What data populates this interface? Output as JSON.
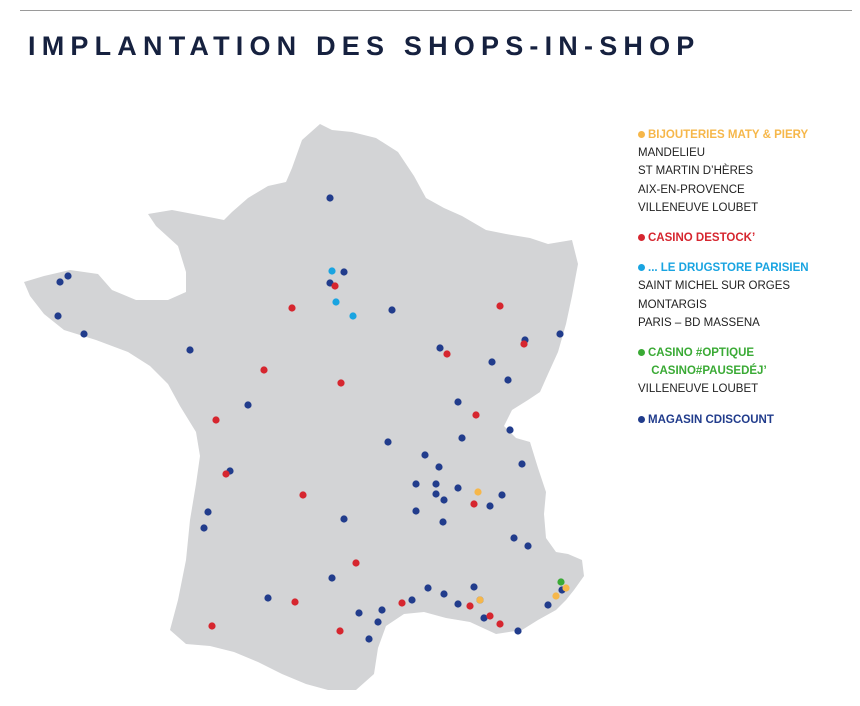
{
  "title": "IMPLANTATION DES SHOPS-IN-SHOP",
  "colors": {
    "map_fill": "#d3d4d6",
    "rule": "#9a9a9a",
    "title": "#16213f",
    "maty": "#f6b74a",
    "destock": "#d6262f",
    "drugstore": "#19a4e1",
    "optique": "#3aaa35",
    "cdiscount": "#213c8c"
  },
  "legend": [
    {
      "id": "maty",
      "label": "BIJOUTERIES MATY & PIERY",
      "color": "#f6b74a",
      "items": [
        "MANDELIEU",
        "ST MARTIN D’HÈRES",
        "AIX-EN-PROVENCE",
        "VILLENEUVE LOUBET"
      ]
    },
    {
      "id": "destock",
      "label": "CASINO DESTOCK’",
      "color": "#d6262f",
      "items": []
    },
    {
      "id": "drugstore",
      "label": "... LE DRUGSTORE PARISIEN",
      "color": "#19a4e1",
      "items": [
        "SAINT MICHEL SUR ORGES",
        "MONTARGIS",
        "PARIS – BD MASSENA"
      ]
    },
    {
      "id": "optique",
      "label": "CASINO #OPTIQUE\n CASINO#PAUSEDÉJ’",
      "color": "#3aaa35",
      "items": [
        "VILLENEUVE LOUBET"
      ]
    },
    {
      "id": "cdiscount",
      "label": "MAGASIN CDISCOUNT",
      "color": "#213c8c",
      "items": []
    }
  ],
  "map": {
    "region": "France",
    "marker_counts": {
      "cdiscount": 68,
      "destock": 24,
      "drugstore": 3,
      "maty": 4,
      "optique": 1
    }
  }
}
